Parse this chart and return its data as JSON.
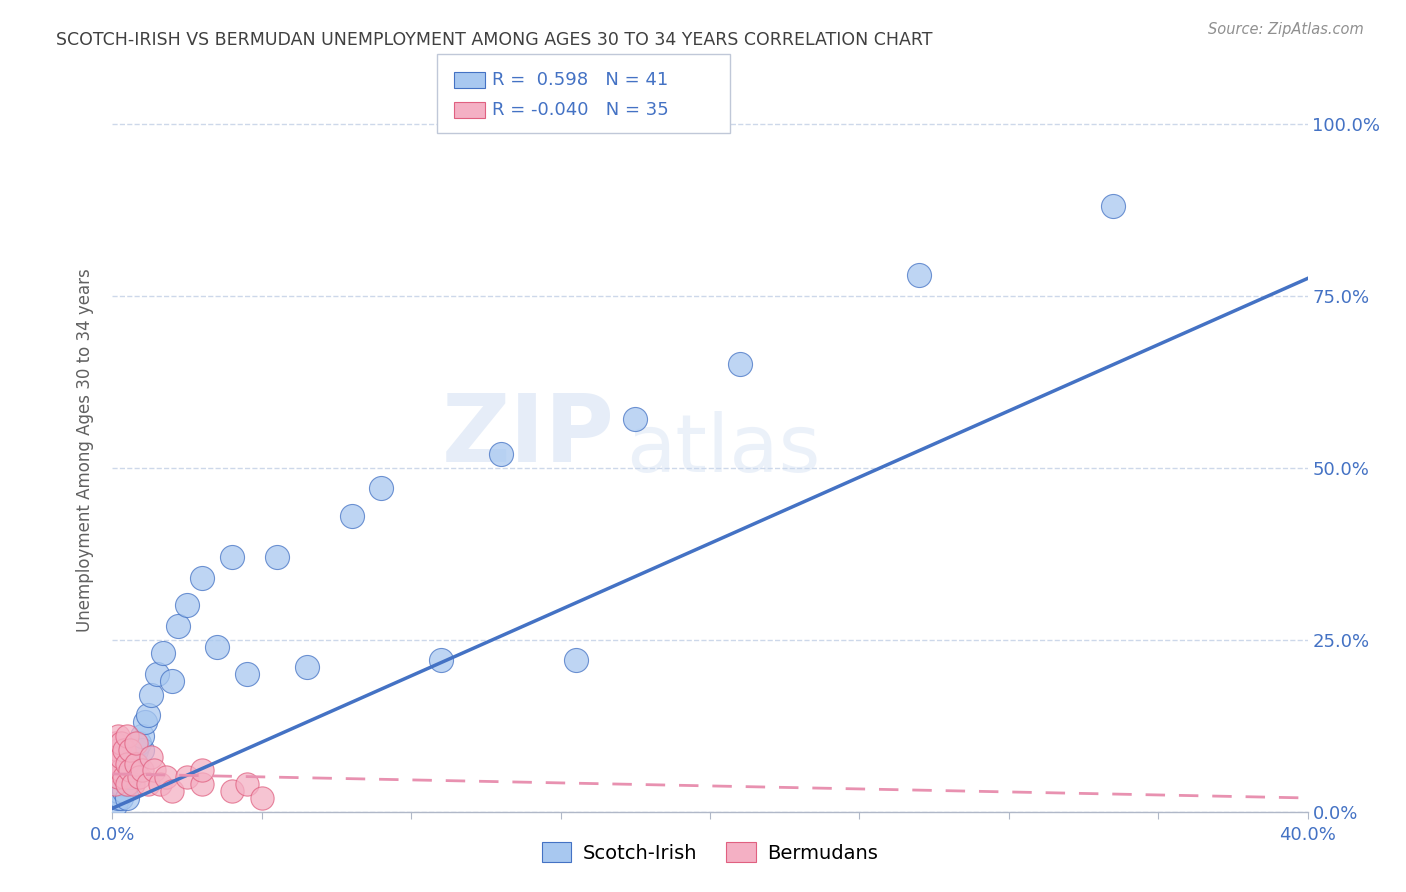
{
  "title": "SCOTCH-IRISH VS BERMUDAN UNEMPLOYMENT AMONG AGES 30 TO 34 YEARS CORRELATION CHART",
  "source": "Source: ZipAtlas.com",
  "ylabel": "Unemployment Among Ages 30 to 34 years",
  "ytick_labels": [
    "0.0%",
    "25.0%",
    "50.0%",
    "75.0%",
    "100.0%"
  ],
  "ytick_values": [
    0,
    0.25,
    0.5,
    0.75,
    1.0
  ],
  "xtick_values": [
    0,
    0.05,
    0.1,
    0.15,
    0.2,
    0.25,
    0.3,
    0.35,
    0.4
  ],
  "xlim": [
    0,
    0.4
  ],
  "ylim": [
    0,
    1.05
  ],
  "watermark_line1": "ZIP",
  "watermark_line2": "atlas",
  "scotch_irish_x": [
    0.001,
    0.002,
    0.002,
    0.003,
    0.003,
    0.004,
    0.004,
    0.005,
    0.005,
    0.006,
    0.006,
    0.007,
    0.007,
    0.008,
    0.008,
    0.009,
    0.01,
    0.01,
    0.011,
    0.012,
    0.013,
    0.015,
    0.017,
    0.02,
    0.022,
    0.025,
    0.03,
    0.035,
    0.04,
    0.045,
    0.055,
    0.065,
    0.08,
    0.09,
    0.11,
    0.13,
    0.155,
    0.175,
    0.21,
    0.27,
    0.335
  ],
  "scotch_irish_y": [
    0.01,
    0.02,
    0.03,
    0.02,
    0.04,
    0.03,
    0.05,
    0.04,
    0.02,
    0.05,
    0.07,
    0.06,
    0.08,
    0.07,
    0.09,
    0.1,
    0.09,
    0.11,
    0.13,
    0.14,
    0.17,
    0.2,
    0.23,
    0.19,
    0.27,
    0.3,
    0.34,
    0.24,
    0.37,
    0.2,
    0.37,
    0.21,
    0.43,
    0.47,
    0.22,
    0.52,
    0.22,
    0.57,
    0.65,
    0.78,
    0.88
  ],
  "bermudan_x": [
    0.001,
    0.001,
    0.001,
    0.001,
    0.002,
    0.002,
    0.002,
    0.002,
    0.003,
    0.003,
    0.003,
    0.004,
    0.004,
    0.005,
    0.005,
    0.005,
    0.006,
    0.006,
    0.007,
    0.008,
    0.008,
    0.009,
    0.01,
    0.012,
    0.013,
    0.014,
    0.016,
    0.018,
    0.02,
    0.025,
    0.03,
    0.03,
    0.04,
    0.045,
    0.05
  ],
  "bermudan_y": [
    0.04,
    0.06,
    0.08,
    0.1,
    0.05,
    0.07,
    0.09,
    0.11,
    0.06,
    0.08,
    0.1,
    0.05,
    0.09,
    0.04,
    0.07,
    0.11,
    0.06,
    0.09,
    0.04,
    0.07,
    0.1,
    0.05,
    0.06,
    0.04,
    0.08,
    0.06,
    0.04,
    0.05,
    0.03,
    0.05,
    0.04,
    0.06,
    0.03,
    0.04,
    0.02
  ],
  "blue_line_x": [
    0.0,
    0.4
  ],
  "blue_line_y": [
    0.005,
    0.775
  ],
  "pink_line_x": [
    0.0,
    0.4
  ],
  "pink_line_y": [
    0.055,
    0.02
  ],
  "blue_line_color": "#4472c4",
  "pink_line_color": "#e891b0",
  "scatter_blue_face": "#a8c8f0",
  "scatter_blue_edge": "#4472c4",
  "scatter_pink_face": "#f4b0c4",
  "scatter_pink_edge": "#e06080",
  "background_color": "#ffffff",
  "grid_color": "#c8d4e8",
  "title_color": "#404040",
  "source_color": "#909090",
  "legend_text_color": "#4472c4",
  "R_scotch": 0.598,
  "N_scotch": 41,
  "R_bermudan": -0.04,
  "N_bermudan": 35
}
